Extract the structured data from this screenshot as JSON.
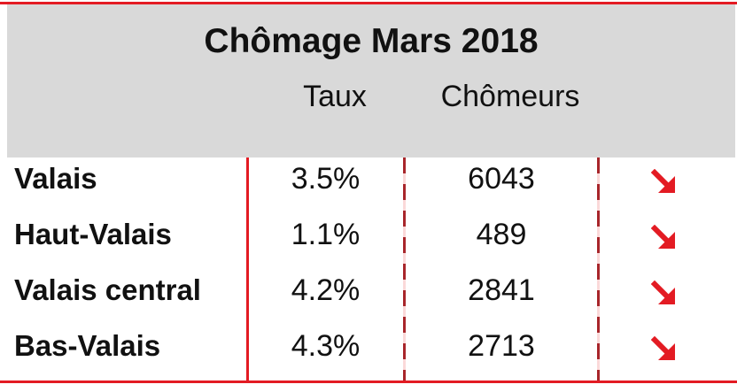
{
  "title": "Chômage Mars 2018",
  "columns": {
    "rate": "Taux",
    "unemployed": "Chômeurs"
  },
  "colors": {
    "accent": "#e31b23",
    "header_bg": "#d9d9d9",
    "dash": "#a8262b"
  },
  "rows": [
    {
      "region": "Valais",
      "rate": "3.5%",
      "unemployed": "6043",
      "trend_icon": "arrow-down-right-icon"
    },
    {
      "region": "Haut-Valais",
      "rate": "1.1%",
      "unemployed": "489",
      "trend_icon": "arrow-down-right-icon"
    },
    {
      "region": "Valais central",
      "rate": "4.2%",
      "unemployed": "2841",
      "trend_icon": "arrow-down-right-icon"
    },
    {
      "region": "Bas-Valais",
      "rate": "4.3%",
      "unemployed": "2713",
      "trend_icon": "arrow-down-right-icon"
    }
  ]
}
